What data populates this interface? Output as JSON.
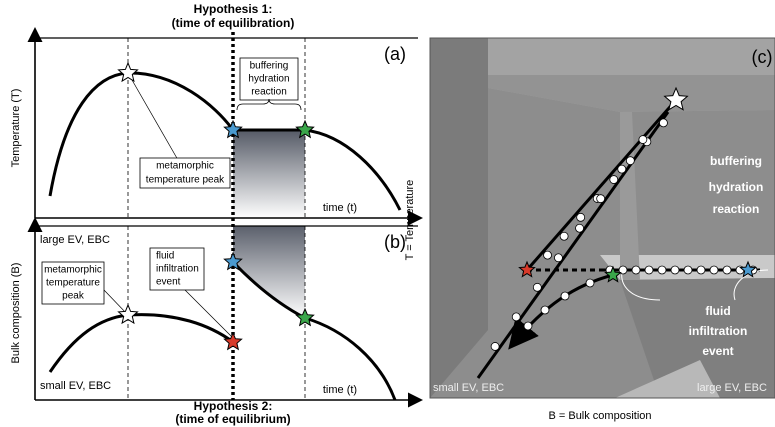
{
  "hypothesis_1": {
    "title": "Hypothesis 1:",
    "subtitle": "(time of equilibration)"
  },
  "hypothesis_2": {
    "title": "Hypothesis 2:",
    "subtitle": "(time of equilibrium)"
  },
  "panel_a": {
    "label": "(a)",
    "y_axis": "Temperature (T)",
    "x_axis": "time (t)",
    "buffering_note": [
      "buffering",
      "hydration",
      "reaction"
    ],
    "peak_note": [
      "metamorphic",
      "temperature peak"
    ]
  },
  "panel_b": {
    "label": "(b)",
    "y_axis": "Bulk composition (B)",
    "x_axis": "time (t)",
    "top_end": "large EV,  EBC",
    "bottom_end": "small EV,  EBC",
    "peak_note": [
      "metamorphic",
      "temperature",
      "peak"
    ],
    "fluid_note": [
      "fluid",
      "infiltration",
      "event"
    ]
  },
  "panel_c": {
    "label": "(c)",
    "y_axis": "T = Temperature",
    "x_axis": "B = Bulk composition",
    "buffering_note": [
      "buffering",
      "hydration",
      "reaction"
    ],
    "fluid_note": [
      "fluid",
      "infiltration",
      "event"
    ],
    "left_end": "small EV,  EBC",
    "right_end": "large EV,  EBC"
  }
}
